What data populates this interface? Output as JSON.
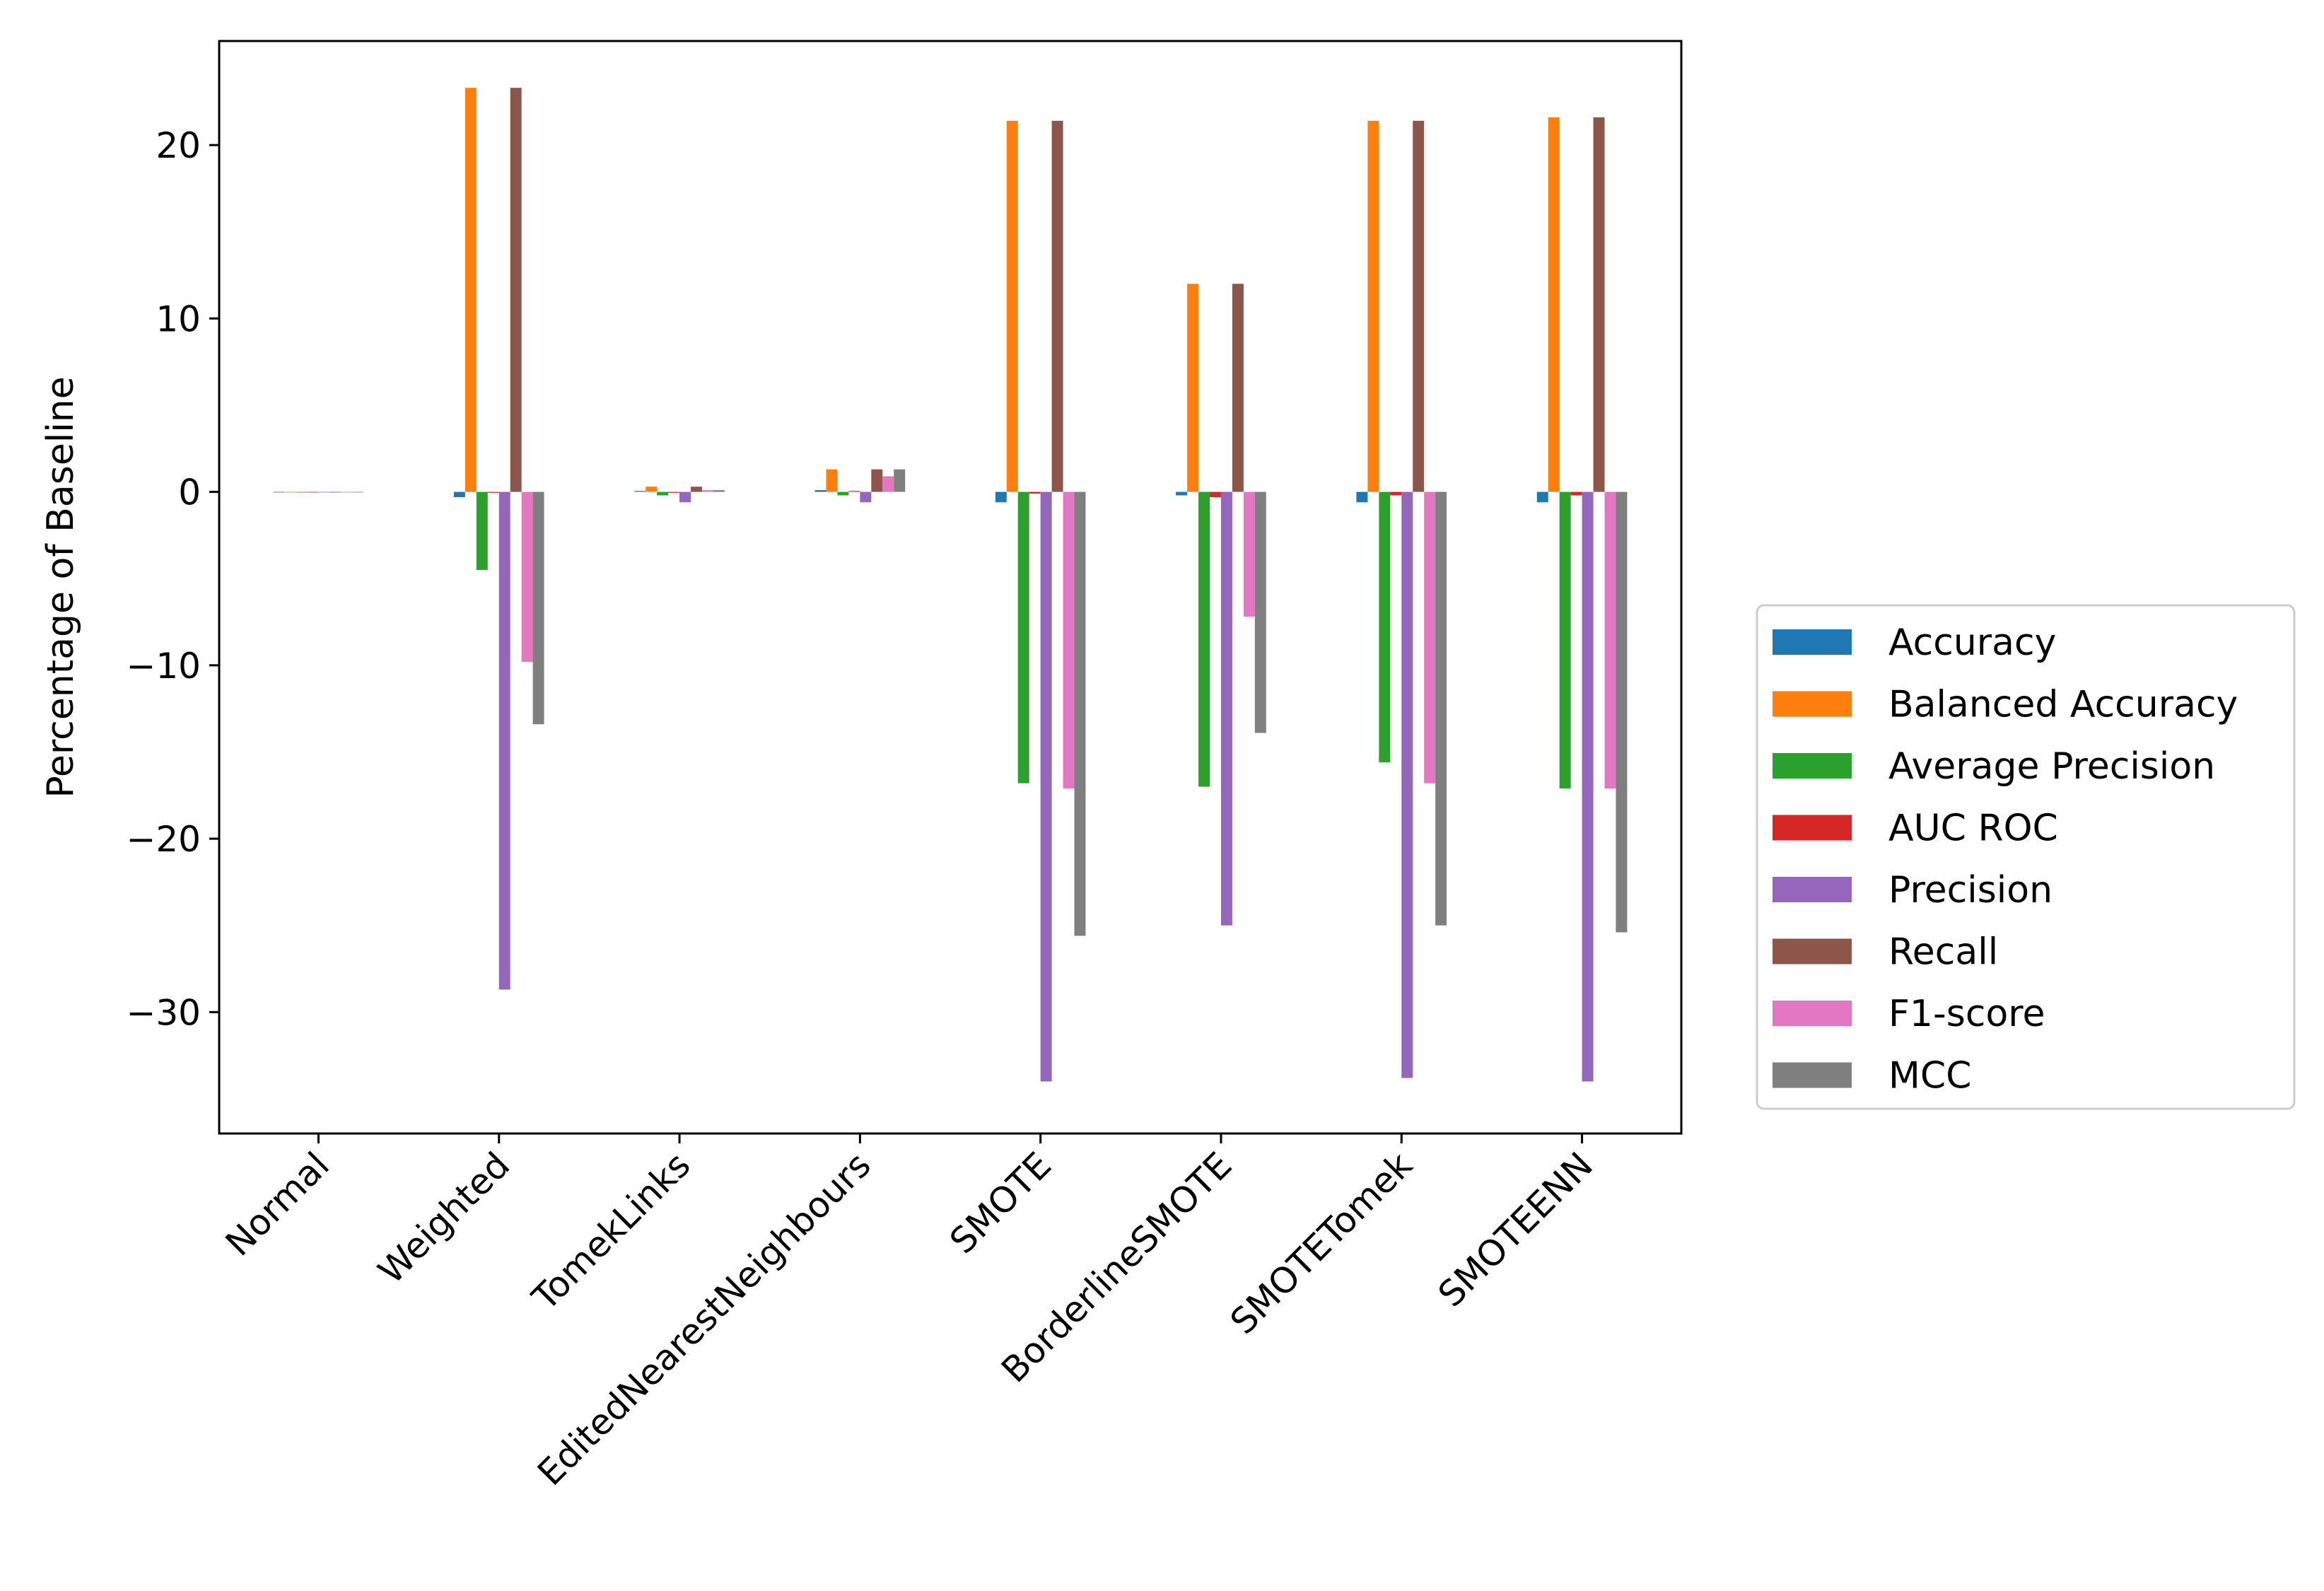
{
  "chart_data": {
    "type": "bar",
    "title": "",
    "xlabel": "",
    "ylabel": "Percentage of Baseline",
    "ylim": [
      -37,
      26
    ],
    "yticks": [
      20,
      10,
      0,
      -10,
      -20,
      -30
    ],
    "ytick_labels": [
      "20",
      "10",
      "0",
      "−10",
      "−20",
      "−30"
    ],
    "grid": false,
    "legend_position": "right",
    "categories": [
      "Normal",
      "Weighted",
      "TomekLinks",
      "EditedNearestNeighbours",
      "SMOTE",
      "BorderlineSMOTE",
      "SMOTETomek",
      "SMOTEENN"
    ],
    "series": [
      {
        "name": "Accuracy",
        "color": "#1f77b4",
        "values": [
          0,
          -0.3,
          0.05,
          0.1,
          -0.6,
          -0.2,
          -0.6,
          -0.6
        ]
      },
      {
        "name": "Balanced Accuracy",
        "color": "#ff7f0e",
        "values": [
          0,
          23.3,
          0.3,
          1.3,
          21.4,
          12.0,
          21.4,
          21.6
        ]
      },
      {
        "name": "Average Precision",
        "color": "#2ca02c",
        "values": [
          0,
          -4.5,
          -0.2,
          -0.2,
          -16.8,
          -17.0,
          -15.6,
          -17.1
        ]
      },
      {
        "name": "AUC ROC",
        "color": "#d62728",
        "values": [
          0,
          -0.05,
          -0.05,
          0.05,
          -0.1,
          -0.3,
          -0.2,
          -0.2
        ]
      },
      {
        "name": "Precision",
        "color": "#9467bd",
        "values": [
          0,
          -28.7,
          -0.6,
          -0.6,
          -34.0,
          -25.0,
          -33.8,
          -34.0
        ]
      },
      {
        "name": "Recall",
        "color": "#8c564b",
        "values": [
          0,
          23.3,
          0.3,
          1.3,
          21.4,
          12.0,
          21.4,
          21.6
        ]
      },
      {
        "name": "F1-score",
        "color": "#e377c2",
        "values": [
          0,
          -9.8,
          0.1,
          0.9,
          -17.1,
          -7.2,
          -16.8,
          -17.1
        ]
      },
      {
        "name": "MCC",
        "color": "#7f7f7f",
        "values": [
          0,
          -13.4,
          0.1,
          1.3,
          -25.6,
          -13.9,
          -25.0,
          -25.4
        ]
      }
    ]
  }
}
